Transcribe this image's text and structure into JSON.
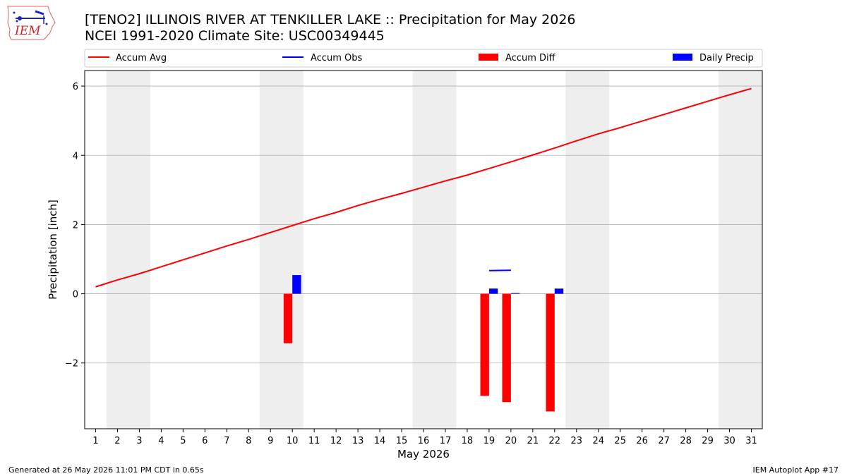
{
  "header": {
    "title_line1": "[TENO2] ILLINOIS RIVER  AT TENKILLER LAKE :: Precipitation for May 2026",
    "title_line2": "NCEI 1991-2020 Climate Site: USC00349445",
    "logo_text": "IEM"
  },
  "footer": {
    "generated": "Generated at 26 May 2026 11:01 PM CDT in 0.65s",
    "app": "IEM Autoplot App #17"
  },
  "colors": {
    "accum_avg": "#ff0000",
    "accum_obs": "#0000ff",
    "accum_diff": "#ff0000",
    "daily_precip": "#0000ff",
    "weekend_shade": "#eeeeee",
    "grid": "#b0b0b0"
  },
  "chart_data": {
    "type": "bar",
    "xlabel": "May 2026",
    "ylabel": "Precipitation [inch]",
    "xlim": [
      0.5,
      31.5
    ],
    "ylim": [
      -3.9,
      6.45
    ],
    "grid": true,
    "legend_position": "top",
    "legend": [
      "Accum Avg",
      "Accum Obs",
      "Accum Diff",
      "Daily Precip"
    ],
    "x_ticks": [
      1,
      2,
      3,
      4,
      5,
      6,
      7,
      8,
      9,
      10,
      11,
      12,
      13,
      14,
      15,
      16,
      17,
      18,
      19,
      20,
      21,
      22,
      23,
      24,
      25,
      26,
      27,
      28,
      29,
      30,
      31
    ],
    "y_ticks": [
      -2,
      0,
      2,
      4,
      6
    ],
    "y_tick_labels": [
      "−2",
      "0",
      "2",
      "4",
      "6"
    ],
    "weekend_bands": [
      [
        1.5,
        3.5
      ],
      [
        8.5,
        10.5
      ],
      [
        15.5,
        17.5
      ],
      [
        22.5,
        24.5
      ],
      [
        29.5,
        31.5
      ]
    ],
    "series": [
      {
        "name": "Accum Avg",
        "kind": "line",
        "x": [
          1,
          2,
          3,
          4,
          5,
          6,
          7,
          8,
          9,
          10,
          11,
          12,
          13,
          14,
          15,
          16,
          17,
          18,
          19,
          20,
          21,
          22,
          23,
          24,
          25,
          26,
          27,
          28,
          29,
          30,
          31
        ],
        "values": [
          0.2,
          0.4,
          0.58,
          0.78,
          0.98,
          1.18,
          1.38,
          1.57,
          1.77,
          1.97,
          2.17,
          2.35,
          2.55,
          2.73,
          2.9,
          3.08,
          3.26,
          3.43,
          3.62,
          3.81,
          4.01,
          4.21,
          4.42,
          4.62,
          4.8,
          4.99,
          5.18,
          5.37,
          5.56,
          5.75,
          5.93
        ]
      },
      {
        "name": "Accum Obs",
        "kind": "line",
        "x": [
          19,
          20
        ],
        "values": [
          0.67,
          0.68
        ]
      },
      {
        "name": "Accum Diff",
        "kind": "bar",
        "x": [
          10,
          19,
          20,
          22
        ],
        "values": [
          -1.43,
          -2.95,
          -3.13,
          -3.4
        ]
      },
      {
        "name": "Daily Precip",
        "kind": "bar",
        "x": [
          10,
          19,
          20,
          22
        ],
        "values": [
          0.54,
          0.15,
          0.02,
          0.15
        ]
      }
    ]
  }
}
